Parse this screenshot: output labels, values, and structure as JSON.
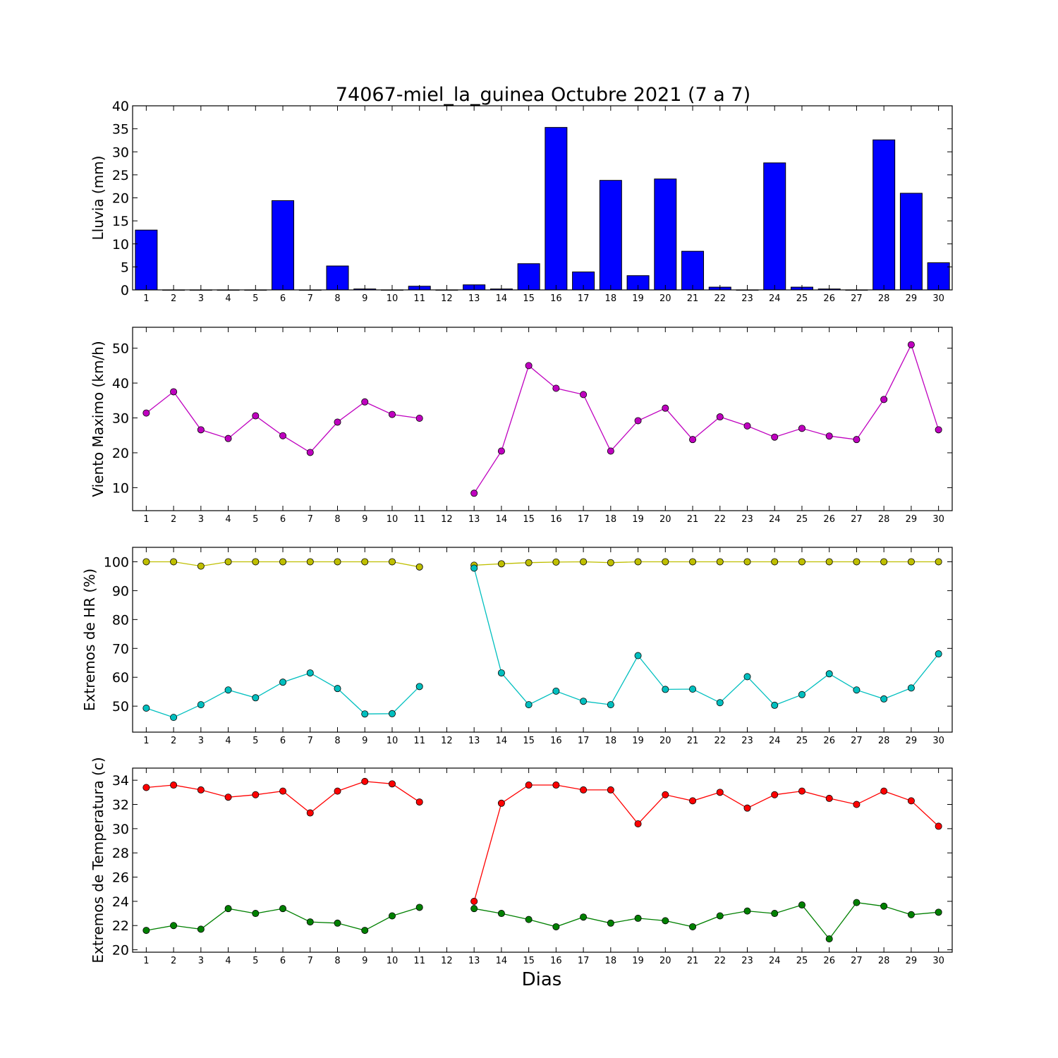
{
  "figure": {
    "title": "74067-miel_la_guinea Octubre 2021  (7 a 7)",
    "xlabel": "Dias"
  },
  "chart_data": [
    {
      "type": "bar",
      "ylabel": "Lluvia (mm)",
      "ylim": [
        0,
        40
      ],
      "yticks": [
        0,
        5,
        10,
        15,
        20,
        25,
        30,
        35,
        40
      ],
      "xlim": [
        0.5,
        30.5
      ],
      "categories": [
        1,
        2,
        3,
        4,
        5,
        6,
        7,
        8,
        9,
        10,
        11,
        12,
        13,
        14,
        15,
        16,
        17,
        18,
        19,
        20,
        21,
        22,
        23,
        24,
        25,
        26,
        27,
        28,
        29,
        30
      ],
      "series": [
        {
          "color": "#0000ff",
          "values": [
            13.0,
            0.0,
            0.0,
            0.0,
            0.0,
            19.4,
            0.0,
            5.2,
            0.2,
            0.0,
            0.8,
            0.0,
            1.1,
            0.2,
            5.7,
            35.3,
            3.9,
            23.8,
            3.1,
            24.1,
            8.4,
            0.6,
            0.0,
            27.6,
            0.6,
            0.2,
            0.0,
            32.6,
            21.0,
            5.9
          ]
        }
      ]
    },
    {
      "type": "line",
      "ylabel": "Viento Maximo (km/h)",
      "ylim": [
        3.4,
        56
      ],
      "yticks": [
        10,
        20,
        30,
        40,
        50
      ],
      "xlim": [
        0.5,
        30.5
      ],
      "x": [
        1,
        2,
        3,
        4,
        5,
        6,
        7,
        8,
        9,
        10,
        11,
        12,
        13,
        14,
        15,
        16,
        17,
        18,
        19,
        20,
        21,
        22,
        23,
        24,
        25,
        26,
        27,
        28,
        29,
        30
      ],
      "series": [
        {
          "color": "#bf00bf",
          "values": [
            31.4,
            37.5,
            26.6,
            24.1,
            30.6,
            24.9,
            20.1,
            28.8,
            34.6,
            31.0,
            29.9,
            null,
            8.4,
            20.5,
            45.0,
            38.5,
            36.7,
            20.5,
            29.2,
            32.8,
            23.8,
            30.3,
            27.7,
            24.5,
            27.0,
            24.8,
            23.8,
            35.3,
            51.0,
            26.6
          ]
        }
      ]
    },
    {
      "type": "line",
      "ylabel": "Extremos de HR (%)",
      "ylim": [
        41,
        105
      ],
      "yticks": [
        50,
        60,
        70,
        80,
        90,
        100
      ],
      "xlim": [
        0.5,
        30.5
      ],
      "x": [
        1,
        2,
        3,
        4,
        5,
        6,
        7,
        8,
        9,
        10,
        11,
        12,
        13,
        14,
        15,
        16,
        17,
        18,
        19,
        20,
        21,
        22,
        23,
        24,
        25,
        26,
        27,
        28,
        29,
        30
      ],
      "series": [
        {
          "color": "#bfbf00",
          "values": [
            100,
            100,
            98.5,
            100,
            100,
            100,
            100,
            100,
            100,
            100,
            98.2,
            null,
            98.8,
            99.3,
            99.7,
            99.9,
            100,
            99.7,
            100,
            100,
            100,
            100,
            100,
            100,
            100,
            100,
            100,
            100,
            100,
            100
          ]
        },
        {
          "color": "#00bfbf",
          "values": [
            49.3,
            46.1,
            50.5,
            55.6,
            52.9,
            58.3,
            61.5,
            56.1,
            47.3,
            47.4,
            56.8,
            null,
            97.8,
            61.5,
            50.5,
            55.2,
            51.7,
            50.5,
            67.5,
            55.8,
            55.9,
            51.2,
            60.2,
            50.3,
            54.0,
            61.2,
            55.6,
            52.5,
            56.3,
            68.1
          ]
        }
      ]
    },
    {
      "type": "line",
      "ylabel": "Extremos de Temperatura (c)",
      "ylim": [
        19.8,
        35
      ],
      "yticks": [
        20,
        22,
        24,
        26,
        28,
        30,
        32,
        34
      ],
      "xlim": [
        0.5,
        30.5
      ],
      "x": [
        1,
        2,
        3,
        4,
        5,
        6,
        7,
        8,
        9,
        10,
        11,
        12,
        13,
        14,
        15,
        16,
        17,
        18,
        19,
        20,
        21,
        22,
        23,
        24,
        25,
        26,
        27,
        28,
        29,
        30
      ],
      "series": [
        {
          "color": "#ff0000",
          "values": [
            33.4,
            33.6,
            33.2,
            32.6,
            32.8,
            33.1,
            31.3,
            33.1,
            33.9,
            33.7,
            32.2,
            null,
            24.0,
            32.1,
            33.6,
            33.6,
            33.2,
            33.2,
            30.4,
            32.8,
            32.3,
            33.0,
            31.7,
            32.8,
            33.1,
            32.5,
            32.0,
            33.1,
            32.3,
            30.2
          ]
        },
        {
          "color": "#008000",
          "values": [
            21.6,
            22.0,
            21.7,
            23.4,
            23.0,
            23.4,
            22.3,
            22.2,
            21.6,
            22.8,
            23.5,
            null,
            23.4,
            23.0,
            22.5,
            21.9,
            22.7,
            22.2,
            22.6,
            22.4,
            21.9,
            22.8,
            23.2,
            23.0,
            23.7,
            20.9,
            23.9,
            23.6,
            22.9,
            23.1
          ]
        }
      ]
    }
  ]
}
